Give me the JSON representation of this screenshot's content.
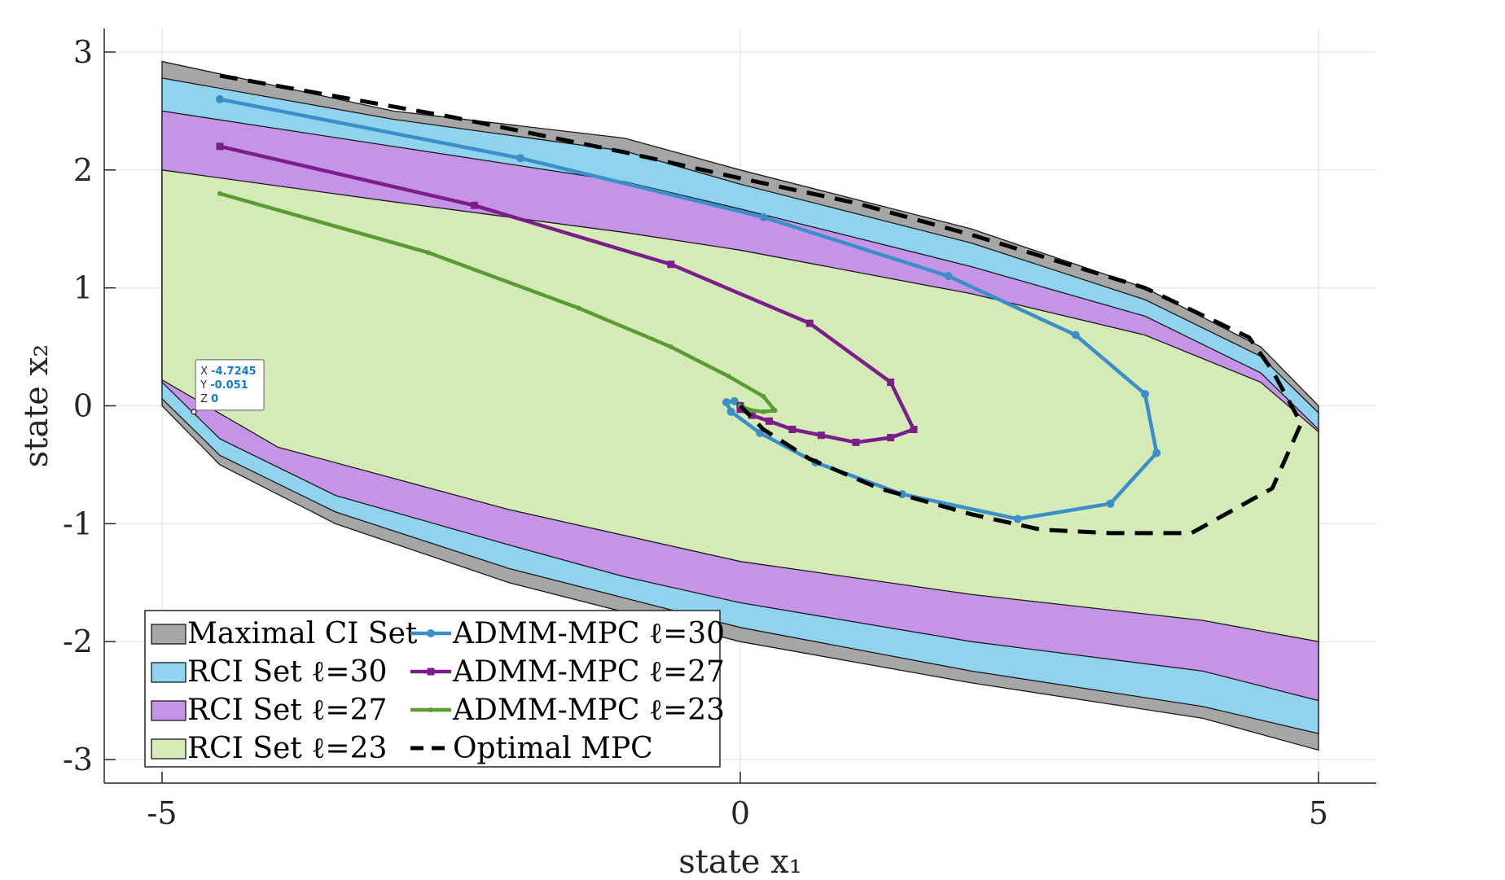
{
  "chart_data": {
    "type": "area",
    "xlabel": "state x₁",
    "ylabel": "state x₂",
    "xlim": [
      -5.5,
      5.5
    ],
    "ylim": [
      -3.2,
      3.2
    ],
    "xticks": [
      -5,
      0,
      5
    ],
    "yticks": [
      3,
      2,
      1,
      0,
      -1,
      -2,
      -3
    ],
    "xtick_labels": [
      "-5",
      "0",
      "5"
    ],
    "ytick_labels": [
      "3",
      "2",
      "1",
      "0",
      "-1",
      "-2",
      "-3"
    ],
    "grid": true,
    "legend_position": "bottom-left",
    "regions": [
      {
        "name": "Maximal CI Set",
        "color": "#a6a6a6",
        "upper": [
          [
            -5,
            2.92
          ],
          [
            -3,
            2.5
          ],
          [
            -1,
            2.27
          ],
          [
            0,
            2.0
          ],
          [
            2,
            1.5
          ],
          [
            3.5,
            1.0
          ],
          [
            4.5,
            0.5
          ],
          [
            5,
            0.0
          ]
        ],
        "lower": [
          [
            -5,
            0.0
          ],
          [
            -4.5,
            -0.5
          ],
          [
            -3.5,
            -1.0
          ],
          [
            -2,
            -1.5
          ],
          [
            -1,
            -1.75
          ],
          [
            0,
            -2.0
          ],
          [
            2,
            -2.35
          ],
          [
            4,
            -2.65
          ],
          [
            5,
            -2.92
          ]
        ]
      },
      {
        "name": "RCI Set ℓ=30",
        "color": "#8fd3ef",
        "upper": [
          [
            -5,
            2.78
          ],
          [
            -3,
            2.43
          ],
          [
            -1,
            2.16
          ],
          [
            0,
            1.88
          ],
          [
            2,
            1.38
          ],
          [
            3.5,
            0.9
          ],
          [
            4.5,
            0.42
          ],
          [
            5,
            -0.06
          ]
        ],
        "lower": [
          [
            -5,
            0.06
          ],
          [
            -4.5,
            -0.42
          ],
          [
            -3.5,
            -0.9
          ],
          [
            -2,
            -1.38
          ],
          [
            -1,
            -1.63
          ],
          [
            0,
            -1.88
          ],
          [
            2,
            -2.25
          ],
          [
            4,
            -2.55
          ],
          [
            5,
            -2.78
          ]
        ]
      },
      {
        "name": "RCI Set ℓ=27",
        "color": "#c594e6",
        "upper": [
          [
            -5,
            2.5
          ],
          [
            -3,
            2.2
          ],
          [
            -1,
            1.9
          ],
          [
            0,
            1.67
          ],
          [
            2,
            1.18
          ],
          [
            3.5,
            0.76
          ],
          [
            4.5,
            0.28
          ],
          [
            5,
            -0.2
          ]
        ],
        "lower": [
          [
            -5,
            0.2
          ],
          [
            -4.5,
            -0.28
          ],
          [
            -3.5,
            -0.76
          ],
          [
            -2,
            -1.18
          ],
          [
            -1,
            -1.45
          ],
          [
            0,
            -1.67
          ],
          [
            2,
            -2.0
          ],
          [
            4,
            -2.25
          ],
          [
            5,
            -2.5
          ]
        ]
      },
      {
        "name": "RCI Set ℓ=23",
        "color": "#d4eab7",
        "upper": [
          [
            -5,
            2.0
          ],
          [
            -3,
            1.73
          ],
          [
            -1,
            1.47
          ],
          [
            0,
            1.32
          ],
          [
            2,
            0.95
          ],
          [
            3.5,
            0.6
          ],
          [
            4.5,
            0.2
          ],
          [
            5,
            -0.22
          ]
        ],
        "lower": [
          [
            -5,
            0.22
          ],
          [
            -4,
            -0.35
          ],
          [
            -2,
            -0.88
          ],
          [
            0,
            -1.32
          ],
          [
            2,
            -1.6
          ],
          [
            4,
            -1.82
          ],
          [
            5,
            -2.0
          ]
        ]
      }
    ],
    "series": [
      {
        "name": "ADMM-MPC ℓ=30",
        "color": "#3a8fc9",
        "marker": "circle",
        "points": [
          [
            -4.5,
            2.6
          ],
          [
            -1.9,
            2.1
          ],
          [
            0.2,
            1.6
          ],
          [
            1.8,
            1.1
          ],
          [
            2.9,
            0.6
          ],
          [
            3.5,
            0.1
          ],
          [
            3.6,
            -0.4
          ],
          [
            3.2,
            -0.83
          ],
          [
            2.4,
            -0.96
          ],
          [
            1.4,
            -0.75
          ],
          [
            0.65,
            -0.48
          ],
          [
            0.17,
            -0.23
          ],
          [
            -0.08,
            -0.05
          ],
          [
            -0.12,
            0.03
          ],
          [
            -0.05,
            0.04
          ],
          [
            0.0,
            0.0
          ]
        ]
      },
      {
        "name": "ADMM-MPC ℓ=27",
        "color": "#7c1d8c",
        "marker": "square",
        "points": [
          [
            -4.5,
            2.2
          ],
          [
            -2.3,
            1.7
          ],
          [
            -0.6,
            1.2
          ],
          [
            0.6,
            0.7
          ],
          [
            1.3,
            0.2
          ],
          [
            1.5,
            -0.2
          ],
          [
            1.3,
            -0.27
          ],
          [
            1.0,
            -0.31
          ],
          [
            0.7,
            -0.25
          ],
          [
            0.45,
            -0.2
          ],
          [
            0.25,
            -0.13
          ],
          [
            0.1,
            -0.08
          ],
          [
            0.0,
            -0.03
          ],
          [
            0.0,
            0.0
          ]
        ]
      },
      {
        "name": "ADMM-MPC ℓ=23",
        "color": "#5a9b34",
        "marker": "dot",
        "points": [
          [
            -4.5,
            1.8
          ],
          [
            -2.7,
            1.3
          ],
          [
            -1.4,
            0.83
          ],
          [
            -0.6,
            0.5
          ],
          [
            -0.1,
            0.25
          ],
          [
            0.2,
            0.08
          ],
          [
            0.3,
            -0.04
          ],
          [
            0.2,
            -0.05
          ],
          [
            0.1,
            -0.04
          ],
          [
            0.0,
            0.0
          ]
        ]
      },
      {
        "name": "Optimal MPC",
        "color": "#000000",
        "marker": "none",
        "dashed": true,
        "points": [
          [
            -4.5,
            2.8
          ],
          [
            -2.5,
            2.45
          ],
          [
            -1,
            2.15
          ],
          [
            0,
            1.93
          ],
          [
            1,
            1.72
          ],
          [
            2,
            1.45
          ],
          [
            3.5,
            1.0
          ],
          [
            4.4,
            0.58
          ],
          [
            4.6,
            0.3
          ],
          [
            4.85,
            -0.15
          ],
          [
            4.6,
            -0.7
          ],
          [
            3.9,
            -1.08
          ],
          [
            3.2,
            -1.08
          ],
          [
            2.6,
            -1.05
          ],
          [
            2.0,
            -0.92
          ],
          [
            1.2,
            -0.7
          ],
          [
            0.6,
            -0.45
          ],
          [
            0.2,
            -0.2
          ],
          [
            0.0,
            0.0
          ]
        ]
      }
    ],
    "datatip": {
      "x": -4.7245,
      "y": -0.051,
      "z": 0,
      "x_label": "X",
      "y_label": "Y",
      "z_label": "Z",
      "x_text": "-4.7245",
      "y_text": "-0.051",
      "z_text": "0"
    },
    "legend": [
      {
        "label": "Maximal CI Set",
        "type": "patch",
        "color": "#a6a6a6"
      },
      {
        "label": "RCI Set ℓ=30",
        "type": "patch",
        "color": "#8fd3ef"
      },
      {
        "label": "RCI Set ℓ=27",
        "type": "patch",
        "color": "#c594e6"
      },
      {
        "label": "RCI Set ℓ=23",
        "type": "patch",
        "color": "#d4eab7"
      },
      {
        "label": "ADMM-MPC ℓ=30",
        "type": "line",
        "color": "#3a8fc9",
        "marker": "circle"
      },
      {
        "label": "ADMM-MPC ℓ=27",
        "type": "line",
        "color": "#7c1d8c",
        "marker": "square"
      },
      {
        "label": "ADMM-MPC ℓ=23",
        "type": "line",
        "color": "#5a9b34",
        "marker": "dot"
      },
      {
        "label": "Optimal MPC",
        "type": "dashed",
        "color": "#000000"
      }
    ]
  }
}
